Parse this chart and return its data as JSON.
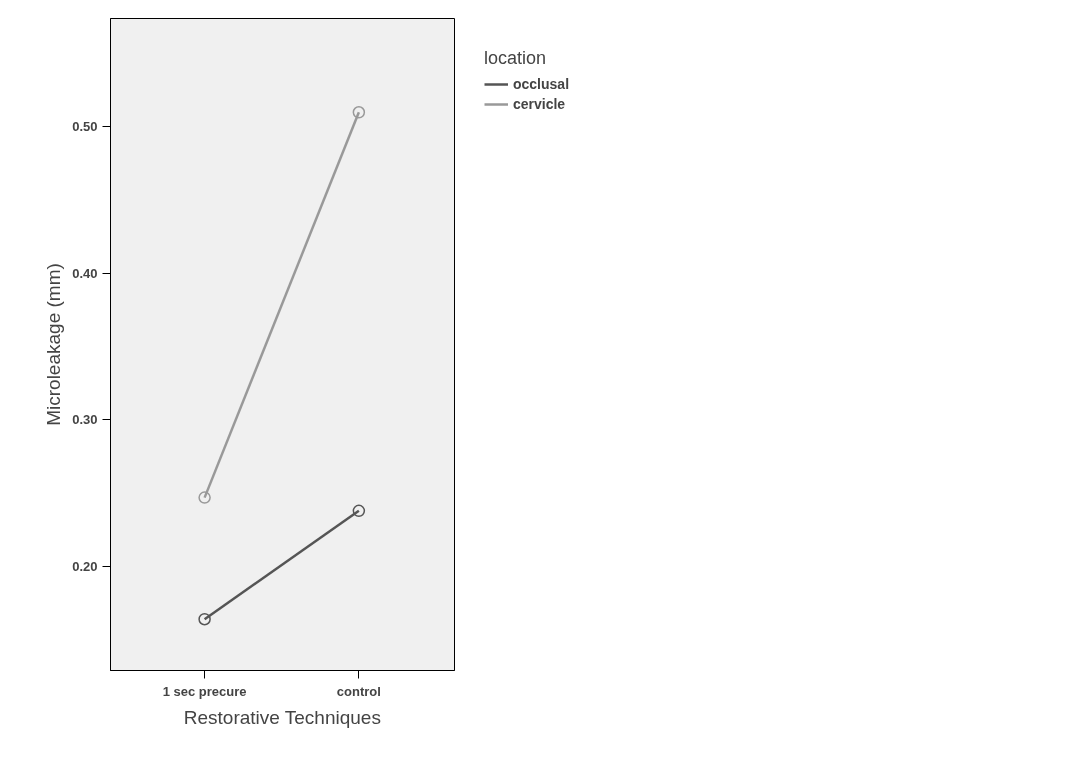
{
  "chart_data": {
    "type": "line",
    "xlabel": "Restorative Techniques",
    "ylabel": "Microleakage (mm)",
    "legend_title": "location",
    "categories": [
      "1 sec precure",
      "control"
    ],
    "series": [
      {
        "name": "occlusal",
        "color": "#555555",
        "values": [
          0.164,
          0.238
        ]
      },
      {
        "name": "cervicle",
        "color": "#999999",
        "values": [
          0.247,
          0.51
        ]
      }
    ],
    "ylim": [
      0.129,
      0.574
    ],
    "yticks": [
      {
        "value": 0.2,
        "label": "0.20"
      },
      {
        "value": 0.3,
        "label": "0.30"
      },
      {
        "value": 0.4,
        "label": "0.40"
      },
      {
        "value": 0.5,
        "label": "0.50"
      }
    ],
    "grid": false,
    "legend": "top right",
    "marker": "circle",
    "line_style": "solid"
  }
}
